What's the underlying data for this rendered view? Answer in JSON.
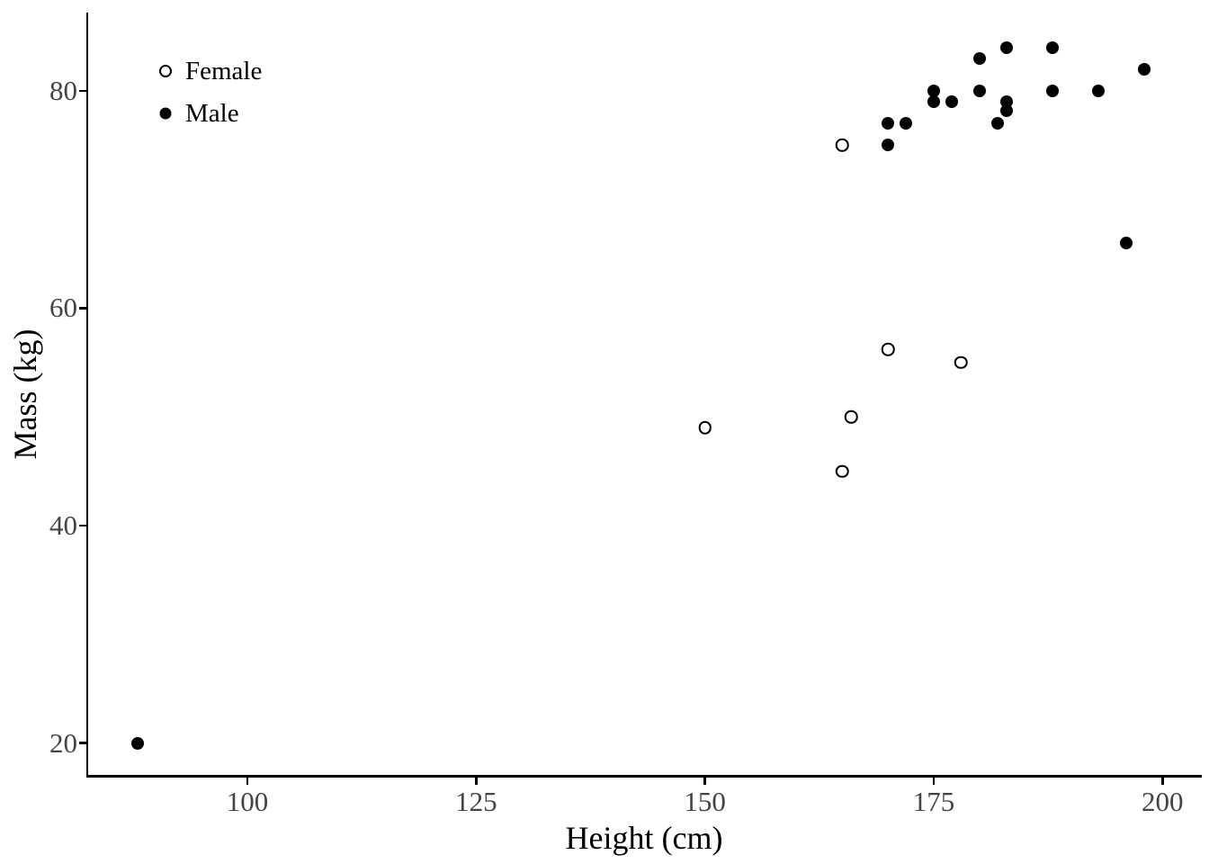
{
  "figure": {
    "x_axis_title": "Height (cm)",
    "y_axis_title": "Mass (kg)"
  },
  "legend": {
    "position": "inside-top-left",
    "items": [
      {
        "label": "Female",
        "marker": "open-circle"
      },
      {
        "label": "Male",
        "marker": "filled-circle"
      }
    ]
  },
  "colors": {
    "point": "#000000",
    "axis_line": "#000000",
    "tick_label": "#444444",
    "title_text": "#000000",
    "background": "#ffffff"
  },
  "chart_data": {
    "type": "scatter",
    "title": "",
    "xlabel": "Height (cm)",
    "ylabel": "Mass (kg)",
    "xlim": [
      82.5,
      204.3
    ],
    "ylim": [
      16.9,
      87.2
    ],
    "x_ticks": [
      100,
      125,
      150,
      175,
      200
    ],
    "y_ticks": [
      20,
      40,
      60,
      80
    ],
    "grid": false,
    "legend_position": "inside-top-left",
    "series": [
      {
        "name": "Female",
        "marker": "open-circle",
        "color": "#000000",
        "points": [
          [
            150,
            49
          ],
          [
            165,
            45
          ],
          [
            165,
            75
          ],
          [
            166,
            50
          ],
          [
            170,
            56.2
          ],
          [
            178,
            55
          ]
        ]
      },
      {
        "name": "Male",
        "marker": "filled-circle",
        "color": "#000000",
        "points": [
          [
            88,
            20
          ],
          [
            170,
            75
          ],
          [
            170,
            77
          ],
          [
            172,
            77
          ],
          [
            175,
            79
          ],
          [
            175,
            80
          ],
          [
            177,
            79
          ],
          [
            180,
            80
          ],
          [
            180,
            83
          ],
          [
            182,
            77
          ],
          [
            183,
            78.2
          ],
          [
            183,
            79
          ],
          [
            183,
            84
          ],
          [
            188,
            80
          ],
          [
            188,
            84
          ],
          [
            193,
            80
          ],
          [
            196,
            66
          ],
          [
            198,
            82
          ]
        ]
      }
    ]
  }
}
